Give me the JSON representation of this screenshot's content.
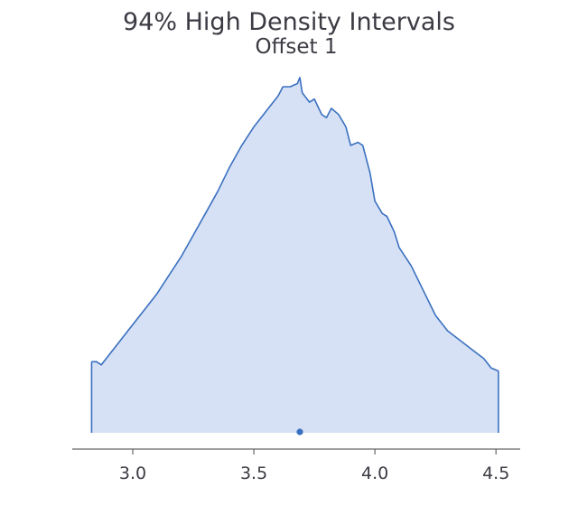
{
  "chart_data": {
    "type": "area",
    "title": "94% High Density Intervals",
    "subtitle": "Offset 1",
    "xlabel": "",
    "ylabel": "",
    "xlim": [
      2.75,
      4.6
    ],
    "xticks": [
      {
        "value": 3.0,
        "label": "3.0"
      },
      {
        "value": 3.5,
        "label": "3.5"
      },
      {
        "value": 4.0,
        "label": "4.0"
      },
      {
        "value": 4.5,
        "label": "4.5"
      }
    ],
    "hdi": [
      2.83,
      4.51
    ],
    "point_estimate": 3.69,
    "grid": false,
    "fill_color": "#d6e1f5",
    "line_color": "#3a70c0",
    "axis_color": "#666666",
    "density": {
      "x": [
        2.83,
        2.85,
        2.87,
        2.9,
        2.95,
        3.0,
        3.05,
        3.1,
        3.15,
        3.2,
        3.25,
        3.3,
        3.35,
        3.4,
        3.45,
        3.5,
        3.55,
        3.6,
        3.62,
        3.65,
        3.68,
        3.69,
        3.7,
        3.73,
        3.75,
        3.78,
        3.8,
        3.82,
        3.85,
        3.88,
        3.9,
        3.93,
        3.95,
        3.98,
        4.0,
        4.03,
        4.05,
        4.08,
        4.1,
        4.15,
        4.2,
        4.25,
        4.3,
        4.35,
        4.4,
        4.45,
        4.48,
        4.51
      ],
      "y": [
        0.23,
        0.23,
        0.22,
        0.25,
        0.3,
        0.35,
        0.4,
        0.45,
        0.51,
        0.57,
        0.64,
        0.71,
        0.78,
        0.86,
        0.93,
        0.99,
        1.04,
        1.09,
        1.12,
        1.12,
        1.13,
        1.15,
        1.1,
        1.07,
        1.08,
        1.03,
        1.02,
        1.05,
        1.03,
        0.99,
        0.93,
        0.94,
        0.93,
        0.84,
        0.75,
        0.71,
        0.7,
        0.65,
        0.6,
        0.54,
        0.46,
        0.38,
        0.33,
        0.3,
        0.27,
        0.24,
        0.21,
        0.2
      ]
    }
  }
}
